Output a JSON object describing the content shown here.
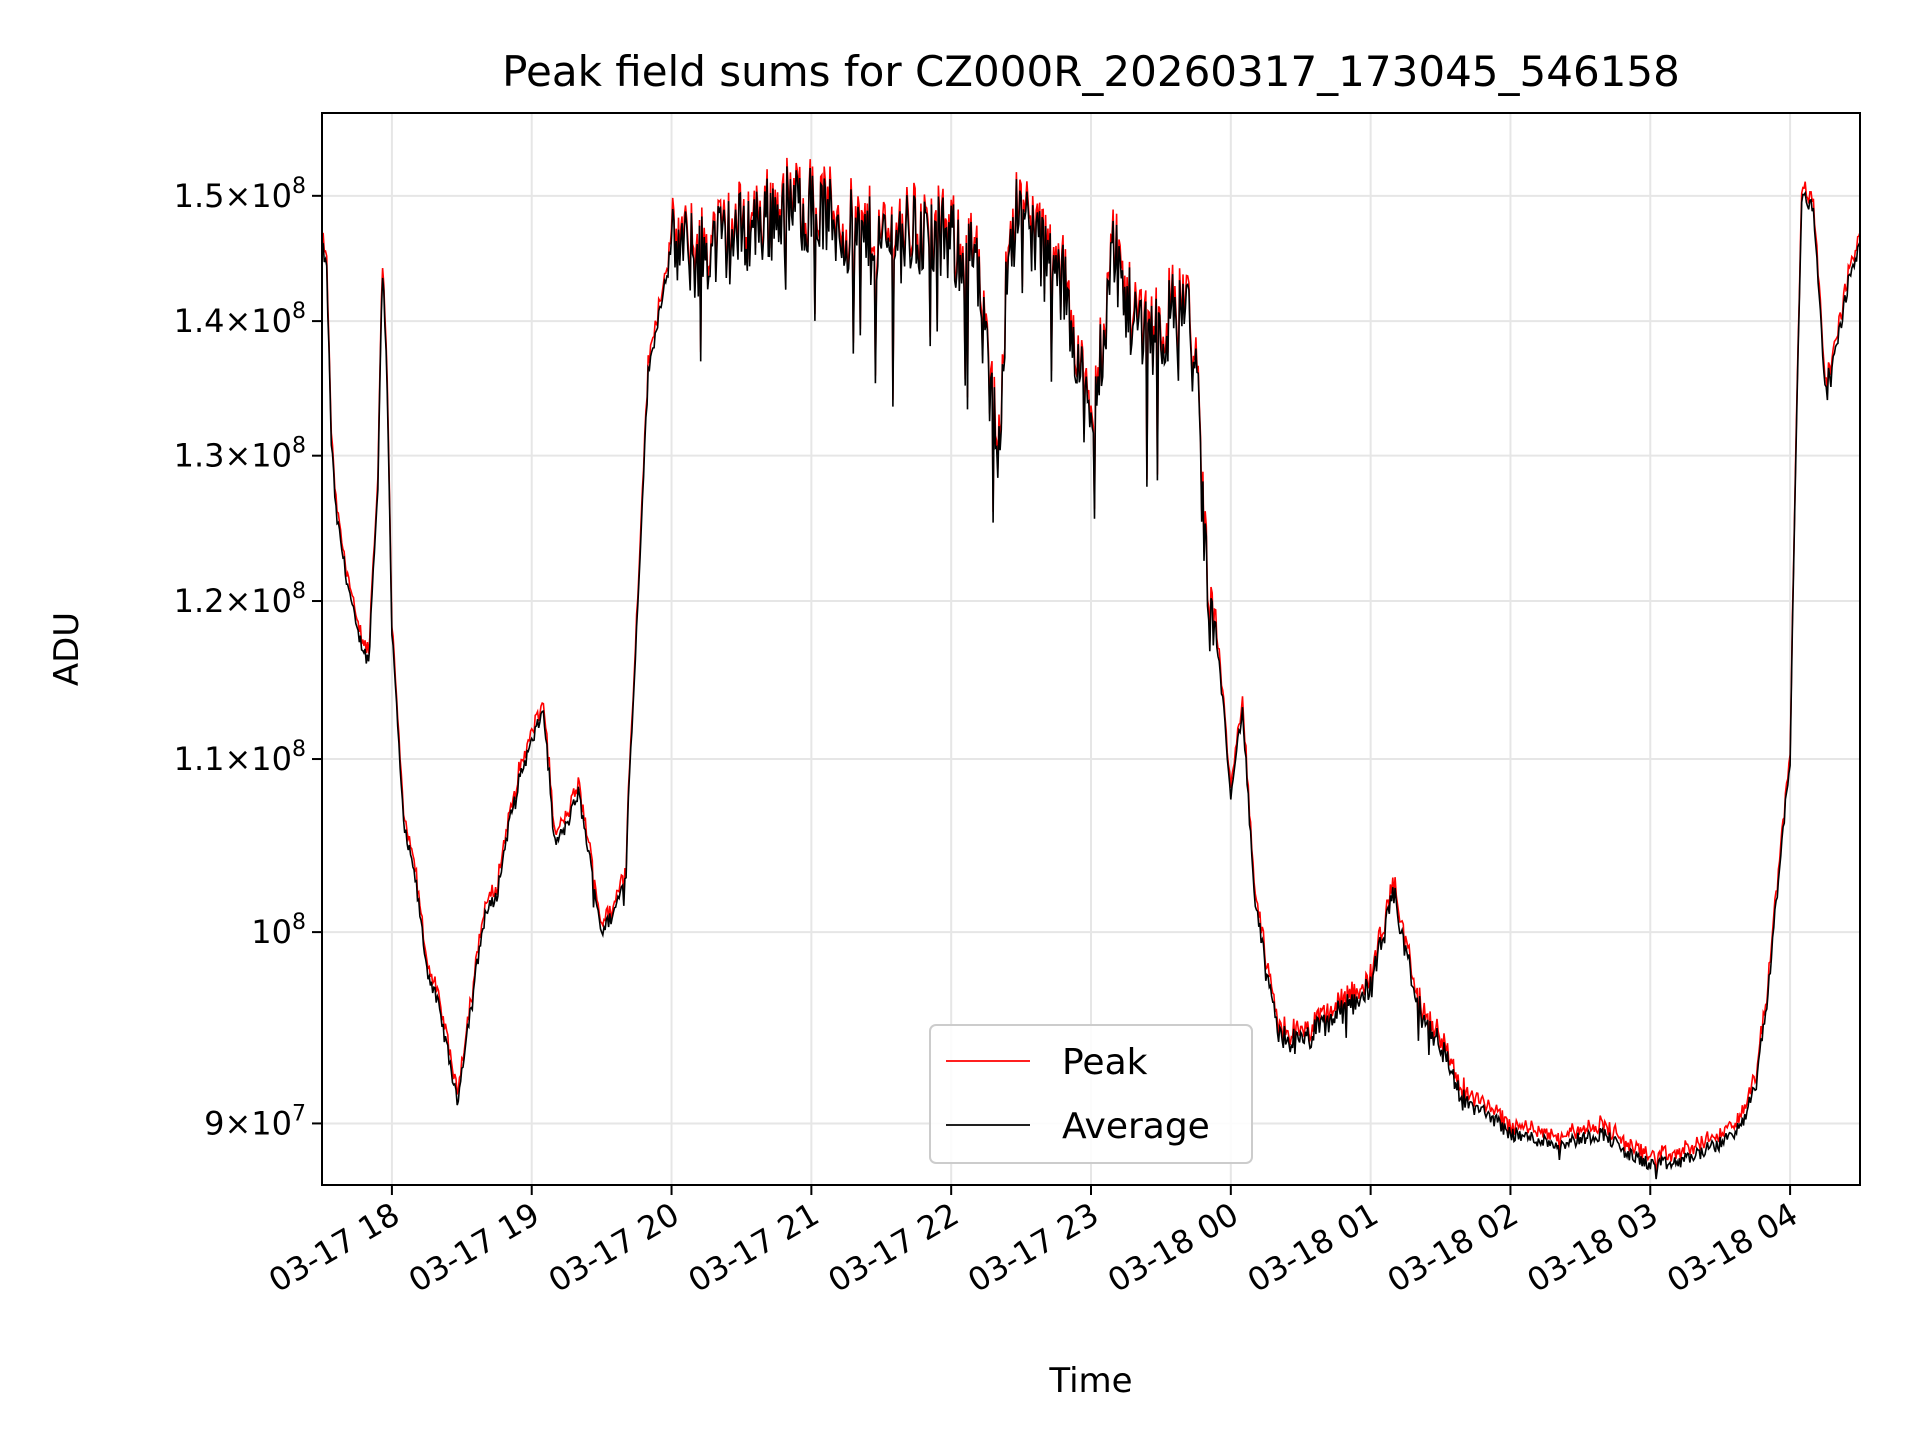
{
  "chart_data": {
    "type": "line",
    "title": "Peak field sums for CZ000R_20260317_173045_546158",
    "xlabel": "Time",
    "ylabel": "ADU",
    "x_range": [
      "03-17 17:30",
      "03-18 04:30"
    ],
    "ylim": [
      87000000,
      157000000
    ],
    "y_scale": "log",
    "grid": true,
    "legend_position": "lower center",
    "x_ticks": [
      {
        "time": "03-17 18:00",
        "label": "03-17 18"
      },
      {
        "time": "03-17 19:00",
        "label": "03-17 19"
      },
      {
        "time": "03-17 20:00",
        "label": "03-17 20"
      },
      {
        "time": "03-17 21:00",
        "label": "03-17 21"
      },
      {
        "time": "03-17 22:00",
        "label": "03-17 22"
      },
      {
        "time": "03-17 23:00",
        "label": "03-17 23"
      },
      {
        "time": "03-18 00:00",
        "label": "03-18 00"
      },
      {
        "time": "03-18 01:00",
        "label": "03-18 01"
      },
      {
        "time": "03-18 02:00",
        "label": "03-18 02"
      },
      {
        "time": "03-18 03:00",
        "label": "03-18 03"
      },
      {
        "time": "03-18 04:00",
        "label": "03-18 04"
      }
    ],
    "y_ticks": [
      {
        "value": 90000000,
        "mant": "9",
        "exp": "7"
      },
      {
        "value": 100000000,
        "mant": "",
        "exp": "8"
      },
      {
        "value": 110000000,
        "mant": "1.1",
        "exp": "8"
      },
      {
        "value": 120000000,
        "mant": "1.2",
        "exp": "8"
      },
      {
        "value": 130000000,
        "mant": "1.3",
        "exp": "8"
      },
      {
        "value": 140000000,
        "mant": "1.4",
        "exp": "8"
      },
      {
        "value": 150000000,
        "mant": "1.5",
        "exp": "8"
      }
    ],
    "series": [
      {
        "name": "Peak",
        "color": "#ff0000"
      },
      {
        "name": "Average",
        "color": "#000000"
      }
    ],
    "average_series": {
      "x": [
        "03-17 17:30",
        "03-17 17:32",
        "03-17 17:34",
        "03-17 17:36",
        "03-17 17:40",
        "03-17 17:45",
        "03-17 17:50",
        "03-17 17:54",
        "03-17 17:56",
        "03-17 17:58",
        "03-17 18:00",
        "03-17 18:05",
        "03-17 18:10",
        "03-17 18:15",
        "03-17 18:20",
        "03-17 18:25",
        "03-17 18:28",
        "03-17 18:35",
        "03-17 18:40",
        "03-17 18:45",
        "03-17 18:50",
        "03-17 18:55",
        "03-17 19:00",
        "03-17 19:05",
        "03-17 19:10",
        "03-17 19:15",
        "03-17 19:20",
        "03-17 19:25",
        "03-17 19:30",
        "03-17 19:35",
        "03-17 19:40",
        "03-17 19:45",
        "03-17 19:50",
        "03-17 20:00",
        "03-17 20:10",
        "03-17 20:20",
        "03-17 20:30",
        "03-17 20:40",
        "03-17 20:50",
        "03-17 21:00",
        "03-17 21:15",
        "03-17 21:30",
        "03-17 21:45",
        "03-17 22:00",
        "03-17 22:10",
        "03-17 22:15",
        "03-17 22:20",
        "03-17 22:25",
        "03-17 22:30",
        "03-17 22:40",
        "03-17 22:50",
        "03-17 23:00",
        "03-17 23:10",
        "03-17 23:15",
        "03-17 23:20",
        "03-17 23:30",
        "03-17 23:40",
        "03-17 23:45",
        "03-17 23:50",
        "03-17 23:55",
        "03-18 00:00",
        "03-18 00:05",
        "03-18 00:10",
        "03-18 00:20",
        "03-18 00:30",
        "03-18 00:40",
        "03-18 00:50",
        "03-18 01:00",
        "03-18 01:10",
        "03-18 01:20",
        "03-18 01:30",
        "03-18 01:40",
        "03-18 01:50",
        "03-18 02:00",
        "03-18 02:20",
        "03-18 02:40",
        "03-18 02:50",
        "03-18 03:00",
        "03-18 03:10",
        "03-18 03:20",
        "03-18 03:30",
        "03-18 03:40",
        "03-18 03:45",
        "03-18 03:50",
        "03-18 04:00",
        "03-18 04:05",
        "03-18 04:10",
        "03-18 04:15",
        "03-18 04:20",
        "03-18 04:25",
        "03-18 04:30"
      ],
      "y": [
        146000000,
        144000000,
        131000000,
        126000000,
        122000000,
        118000000,
        116000000,
        128000000,
        145000000,
        135000000,
        118000000,
        106000000,
        103000000,
        98000000,
        96000000,
        93000000,
        91000000,
        97000000,
        101000000,
        102000000,
        106000000,
        109000000,
        111000000,
        113000000,
        105000000,
        106000000,
        108000000,
        104000000,
        100000000,
        101000000,
        103000000,
        118000000,
        136000000,
        146000000,
        145000000,
        146000000,
        147000000,
        148000000,
        149000000,
        149000000,
        147000000,
        146000000,
        147000000,
        146000000,
        145000000,
        137000000,
        130000000,
        147000000,
        149000000,
        145000000,
        142000000,
        131000000,
        146000000,
        141000000,
        140000000,
        139000000,
        142000000,
        136000000,
        120000000,
        116000000,
        108000000,
        113000000,
        102000000,
        94500000,
        94000000,
        95000000,
        96000000,
        97000000,
        102000000,
        96000000,
        94000000,
        91000000,
        90500000,
        89500000,
        89000000,
        89500000,
        88500000,
        88000000,
        88000000,
        88500000,
        89000000,
        90000000,
        92000000,
        96000000,
        110000000,
        150000000,
        149000000,
        135000000,
        138000000,
        143000000,
        146000000
      ]
    },
    "peak_offset_percent": 0.5
  }
}
